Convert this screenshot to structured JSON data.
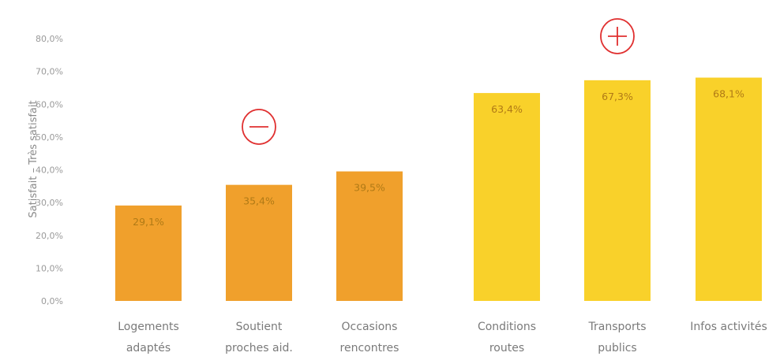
{
  "chart_data": {
    "type": "bar",
    "ylabel": "Satisfait – Très satisfait",
    "ylim": [
      0,
      80
    ],
    "yticks": [
      "0,0%",
      "10,0%",
      "20,0%",
      "30,0%",
      "40,0%",
      "50,0%",
      "60,0%",
      "70,0%",
      "80,0%"
    ],
    "grid": false,
    "categories": [
      [
        "Logements",
        "adaptés"
      ],
      [
        "Soutient",
        "proches aid."
      ],
      [
        "Occasions",
        "rencontres"
      ],
      [
        "Conditions",
        "routes"
      ],
      [
        "Transports",
        "publics"
      ],
      [
        "Infos activités"
      ]
    ],
    "values": [
      29.1,
      35.4,
      39.5,
      63.4,
      67.3,
      68.1
    ],
    "value_labels": [
      "29,1%",
      "35,4%",
      "39,5%",
      "63,4%",
      "67,3%",
      "68,1%"
    ],
    "colors": [
      "#f0a02c",
      "#f0a02c",
      "#f0a02c",
      "#f9d12a",
      "#f9d12a",
      "#f9d12a"
    ],
    "annotations": [
      {
        "symbol": "minus",
        "category_index": 1,
        "color": "#e03030"
      },
      {
        "symbol": "plus",
        "category_index": 4,
        "color": "#e03030"
      }
    ]
  }
}
